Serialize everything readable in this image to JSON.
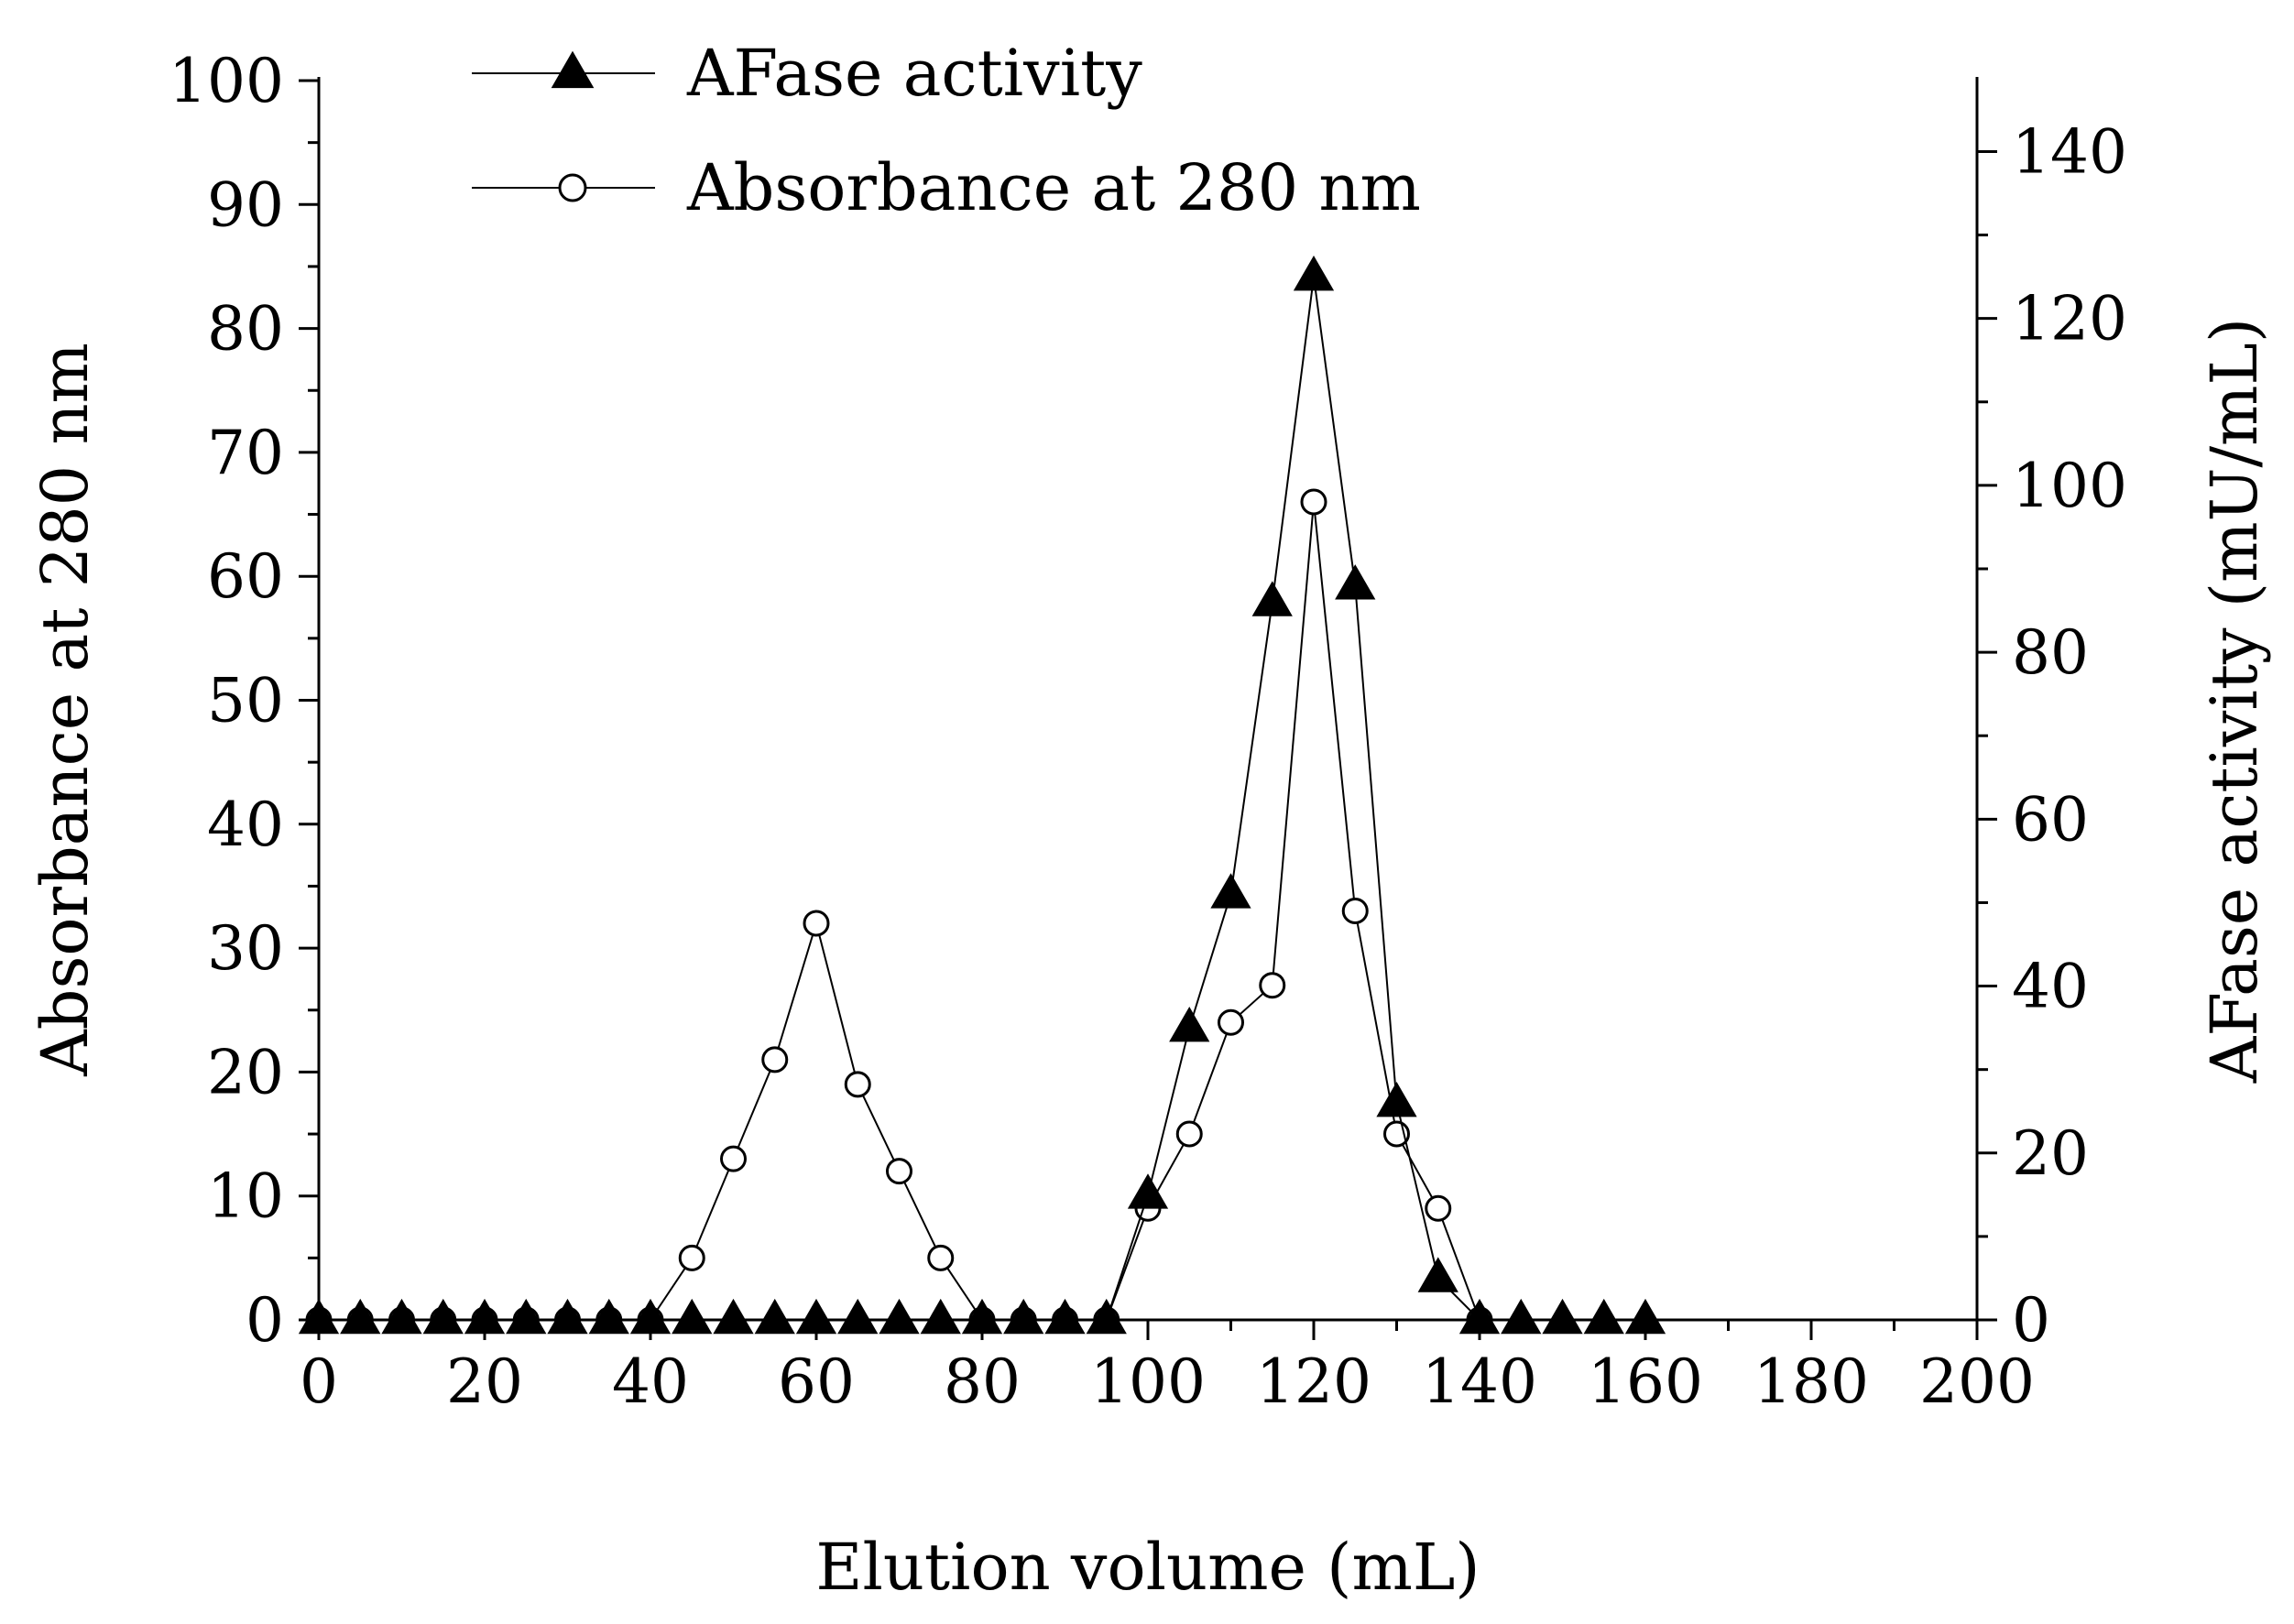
{
  "chart_data": {
    "type": "line",
    "xlabel": "Elution volume (mL)",
    "ylabel_left": "Absorbance at 280 nm",
    "ylabel_right": "AFase activity (mU/mL)",
    "xlim": [
      0,
      200
    ],
    "ylim_left": [
      0,
      100
    ],
    "ylim_right": [
      0,
      148.5
    ],
    "x_ticks": [
      0,
      20,
      40,
      60,
      80,
      100,
      120,
      140,
      160,
      180,
      200
    ],
    "y_left_ticks": [
      0,
      10,
      20,
      30,
      40,
      50,
      60,
      70,
      80,
      90,
      100
    ],
    "y_right_ticks": [
      0,
      20,
      40,
      60,
      80,
      100,
      120,
      140
    ],
    "grid": false,
    "legend_position": "top-left",
    "series": [
      {
        "name": "AFase activity",
        "axis": "right",
        "marker": "filled-triangle",
        "x": [
          0,
          5,
          10,
          15,
          20,
          25,
          30,
          35,
          40,
          45,
          50,
          55,
          60,
          65,
          70,
          75,
          80,
          85,
          90,
          95,
          100,
          105,
          110,
          115,
          120,
          125,
          130,
          135,
          140,
          145,
          150,
          155,
          160
        ],
        "y": [
          0,
          0,
          0,
          0,
          0,
          0,
          0,
          0,
          0,
          0,
          0,
          0,
          0,
          0,
          0,
          0,
          0,
          0,
          0,
          0,
          15,
          35,
          51,
          86,
          125,
          88,
          26,
          5,
          0,
          0,
          0,
          0,
          0
        ]
      },
      {
        "name": "Absorbance at 280 nm",
        "axis": "left",
        "marker": "open-circle",
        "x": [
          0,
          5,
          10,
          15,
          20,
          25,
          30,
          35,
          40,
          45,
          50,
          55,
          60,
          65,
          70,
          75,
          80,
          85,
          90,
          95,
          100,
          105,
          110,
          115,
          120,
          125,
          130,
          135,
          140
        ],
        "y": [
          0,
          0,
          0,
          0,
          0,
          0,
          0,
          0,
          0,
          5,
          13,
          21,
          32,
          19,
          12,
          5,
          0,
          0,
          0,
          0,
          9,
          15,
          24,
          27,
          66,
          33,
          15,
          9,
          0
        ]
      }
    ]
  }
}
